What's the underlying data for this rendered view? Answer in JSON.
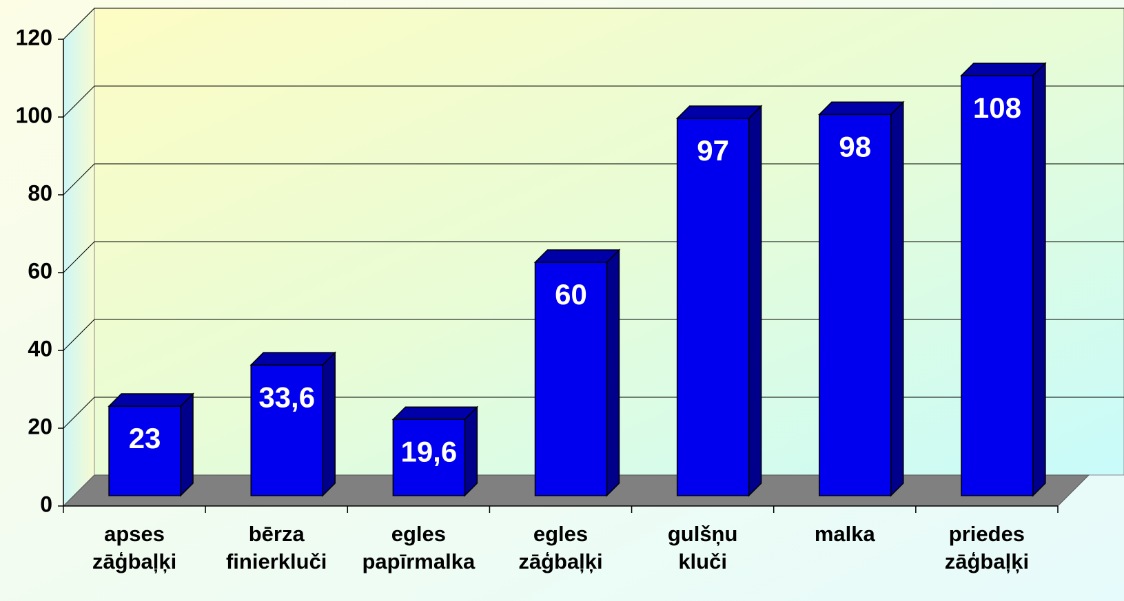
{
  "chart_data": {
    "type": "bar3d",
    "categories": [
      "apses zāģbaļķi",
      "bērza finierkluči",
      "egles papīrmalka",
      "egles zāģbaļķi",
      "gulšņu kluči",
      "malka",
      "priedes zāģbaļķi"
    ],
    "values": [
      23,
      33.6,
      19.6,
      60,
      97,
      98,
      108
    ],
    "value_labels": [
      "23",
      "33,6",
      "19,6",
      "60",
      "97",
      "98",
      "108"
    ],
    "color": "#0000ee",
    "ylim": [
      0,
      120
    ],
    "yticks": [
      0,
      20,
      40,
      60,
      80,
      100,
      120
    ],
    "grid": true
  }
}
